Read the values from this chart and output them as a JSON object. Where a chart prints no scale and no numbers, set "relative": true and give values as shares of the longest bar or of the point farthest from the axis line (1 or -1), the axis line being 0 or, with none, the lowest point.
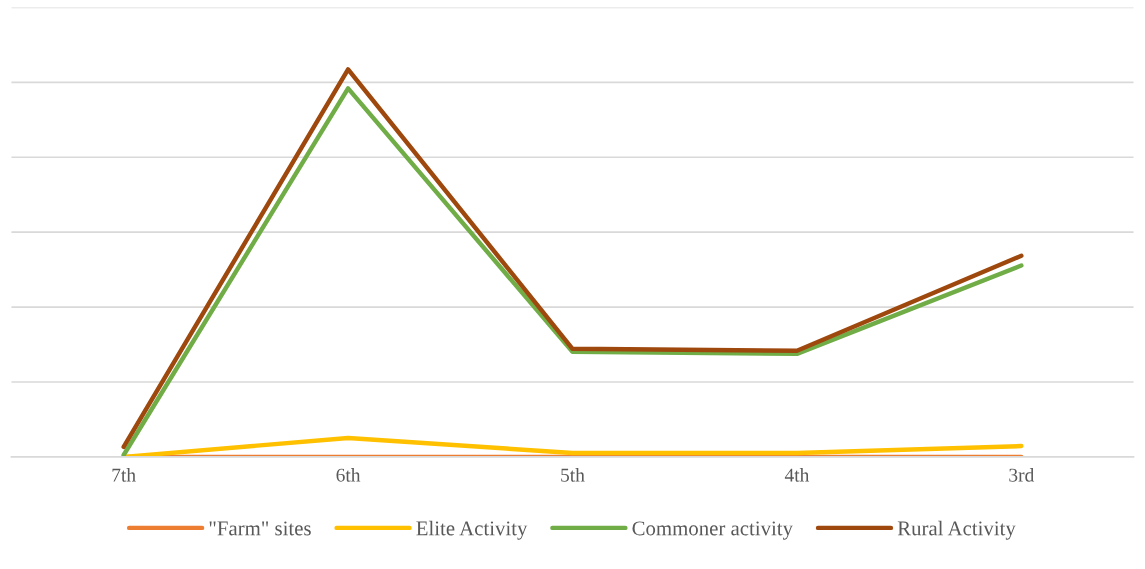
{
  "chart_data": {
    "type": "line",
    "relative": true,
    "categories": [
      "7th",
      "6th",
      "5th",
      "4th",
      "3rd"
    ],
    "series": [
      {
        "name": "\"Farm\" sites",
        "color": "#ed7d31",
        "values": [
          0,
          0,
          0,
          0,
          0
        ]
      },
      {
        "name": "Elite Activity",
        "color": "#ffc000",
        "values": [
          0,
          0.049,
          0.01,
          0.01,
          0.028
        ]
      },
      {
        "name": "Commoner activity",
        "color": "#70ad47",
        "values": [
          0.005,
          0.951,
          0.271,
          0.266,
          0.494
        ]
      },
      {
        "name": "Rural Activity",
        "color": "#9e480e",
        "values": [
          0.026,
          1,
          0.279,
          0.274,
          0.519
        ]
      }
    ],
    "grid": "y",
    "legend": "bottom",
    "marker": "none",
    "line_style": "solid"
  }
}
